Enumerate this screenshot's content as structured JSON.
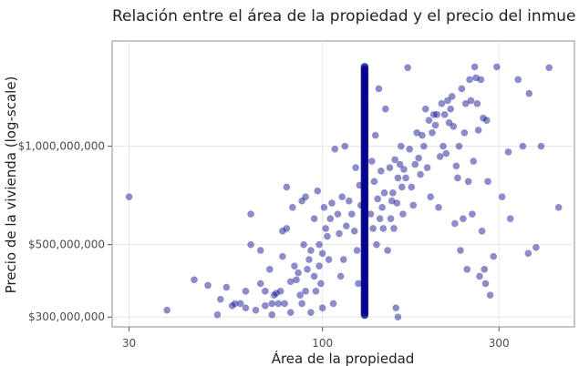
{
  "chart_data": {
    "type": "scatter",
    "title": "Relación entre el área de la propiedad y el precio del inmue",
    "xlabel": "Área de la propiedad",
    "ylabel": "Precio de la vivienda (log-scale)",
    "x_scale": "log",
    "y_scale": "log",
    "xlim": [
      27,
      480
    ],
    "ylim": [
      280000000,
      2100000000
    ],
    "x_ticks": [
      {
        "value": 30,
        "label": "30"
      },
      {
        "value": 100,
        "label": "100"
      },
      {
        "value": 300,
        "label": "300"
      }
    ],
    "y_ticks": [
      {
        "value": 300000000,
        "label": "$300,000,000"
      },
      {
        "value": 500000000,
        "label": "$500,000,000"
      },
      {
        "value": 1000000000,
        "label": "$1,000,000,000"
      }
    ],
    "grid": true,
    "point_color": "#00008b",
    "column_x": 130,
    "column_y_range": [
      300000000,
      1750000000
    ],
    "points": [
      [
        30,
        700000000
      ],
      [
        38,
        315000000
      ],
      [
        45,
        390000000
      ],
      [
        49,
        375000000
      ],
      [
        52,
        305000000
      ],
      [
        53,
        340000000
      ],
      [
        55,
        370000000
      ],
      [
        57,
        325000000
      ],
      [
        58,
        330000000
      ],
      [
        60,
        330000000
      ],
      [
        62,
        320000000
      ],
      [
        62,
        360000000
      ],
      [
        64,
        620000000
      ],
      [
        64,
        500000000
      ],
      [
        66,
        315000000
      ],
      [
        68,
        380000000
      ],
      [
        68,
        480000000
      ],
      [
        70,
        325000000
      ],
      [
        70,
        360000000
      ],
      [
        72,
        420000000
      ],
      [
        73,
        305000000
      ],
      [
        73,
        330000000
      ],
      [
        74,
        350000000
      ],
      [
        75,
        355000000
      ],
      [
        76,
        330000000
      ],
      [
        77,
        360000000
      ],
      [
        78,
        550000000
      ],
      [
        78,
        460000000
      ],
      [
        79,
        330000000
      ],
      [
        80,
        750000000
      ],
      [
        80,
        560000000
      ],
      [
        82,
        310000000
      ],
      [
        82,
        385000000
      ],
      [
        83,
        650000000
      ],
      [
        84,
        430000000
      ],
      [
        85,
        390000000
      ],
      [
        86,
        410000000
      ],
      [
        87,
        350000000
      ],
      [
        88,
        330000000
      ],
      [
        88,
        680000000
      ],
      [
        89,
        500000000
      ],
      [
        90,
        360000000
      ],
      [
        90,
        700000000
      ],
      [
        91,
        420000000
      ],
      [
        92,
        450000000
      ],
      [
        93,
        310000000
      ],
      [
        93,
        480000000
      ],
      [
        95,
        400000000
      ],
      [
        95,
        600000000
      ],
      [
        96,
        360000000
      ],
      [
        97,
        730000000
      ],
      [
        98,
        430000000
      ],
      [
        98,
        500000000
      ],
      [
        99,
        380000000
      ],
      [
        100,
        320000000
      ],
      [
        100,
        470000000
      ],
      [
        101,
        650000000
      ],
      [
        102,
        560000000
      ],
      [
        103,
        530000000
      ],
      [
        104,
        450000000
      ],
      [
        105,
        600000000
      ],
      [
        106,
        670000000
      ],
      [
        107,
        330000000
      ],
      [
        108,
        980000000
      ],
      [
        110,
        620000000
      ],
      [
        111,
        540000000
      ],
      [
        112,
        400000000
      ],
      [
        113,
        700000000
      ],
      [
        114,
        450000000
      ],
      [
        115,
        1000000000
      ],
      [
        116,
        570000000
      ],
      [
        118,
        680000000
      ],
      [
        120,
        620000000
      ],
      [
        122,
        550000000
      ],
      [
        123,
        860000000
      ],
      [
        124,
        480000000
      ],
      [
        125,
        380000000
      ],
      [
        126,
        760000000
      ],
      [
        127,
        660000000
      ],
      [
        135,
        620000000
      ],
      [
        136,
        900000000
      ],
      [
        137,
        560000000
      ],
      [
        138,
        780000000
      ],
      [
        139,
        1080000000
      ],
      [
        140,
        500000000
      ],
      [
        141,
        690000000
      ],
      [
        142,
        1500000000
      ],
      [
        143,
        600000000
      ],
      [
        144,
        840000000
      ],
      [
        145,
        650000000
      ],
      [
        146,
        560000000
      ],
      [
        147,
        720000000
      ],
      [
        148,
        1300000000
      ],
      [
        150,
        480000000
      ],
      [
        152,
        860000000
      ],
      [
        153,
        600000000
      ],
      [
        154,
        680000000
      ],
      [
        155,
        720000000
      ],
      [
        156,
        560000000
      ],
      [
        157,
        910000000
      ],
      [
        158,
        320000000
      ],
      [
        159,
        670000000
      ],
      [
        160,
        800000000
      ],
      [
        160,
        300000000
      ],
      [
        162,
        880000000
      ],
      [
        163,
        1000000000
      ],
      [
        164,
        750000000
      ],
      [
        165,
        620000000
      ],
      [
        166,
        850000000
      ],
      [
        168,
        800000000
      ],
      [
        170,
        1740000000
      ],
      [
        172,
        980000000
      ],
      [
        174,
        750000000
      ],
      [
        176,
        660000000
      ],
      [
        178,
        880000000
      ],
      [
        180,
        1100000000
      ],
      [
        182,
        920000000
      ],
      [
        184,
        820000000
      ],
      [
        186,
        1080000000
      ],
      [
        188,
        1000000000
      ],
      [
        190,
        1300000000
      ],
      [
        192,
        860000000
      ],
      [
        194,
        1200000000
      ],
      [
        196,
        700000000
      ],
      [
        198,
        1100000000
      ],
      [
        200,
        1250000000
      ],
      [
        202,
        1160000000
      ],
      [
        204,
        1250000000
      ],
      [
        206,
        650000000
      ],
      [
        208,
        930000000
      ],
      [
        210,
        1350000000
      ],
      [
        212,
        1000000000
      ],
      [
        214,
        1250000000
      ],
      [
        216,
        950000000
      ],
      [
        218,
        1380000000
      ],
      [
        220,
        1180000000
      ],
      [
        222,
        1300000000
      ],
      [
        224,
        1420000000
      ],
      [
        226,
        1150000000
      ],
      [
        228,
        580000000
      ],
      [
        230,
        870000000
      ],
      [
        232,
        800000000
      ],
      [
        234,
        1000000000
      ],
      [
        236,
        480000000
      ],
      [
        238,
        1500000000
      ],
      [
        240,
        600000000
      ],
      [
        242,
        1100000000
      ],
      [
        244,
        1350000000
      ],
      [
        246,
        420000000
      ],
      [
        248,
        780000000
      ],
      [
        250,
        1600000000
      ],
      [
        252,
        1380000000
      ],
      [
        254,
        620000000
      ],
      [
        256,
        900000000
      ],
      [
        258,
        1750000000
      ],
      [
        260,
        1620000000
      ],
      [
        262,
        1350000000
      ],
      [
        264,
        1120000000
      ],
      [
        266,
        400000000
      ],
      [
        268,
        1600000000
      ],
      [
        270,
        550000000
      ],
      [
        272,
        1220000000
      ],
      [
        274,
        420000000
      ],
      [
        276,
        380000000
      ],
      [
        278,
        1200000000
      ],
      [
        280,
        780000000
      ],
      [
        284,
        350000000
      ],
      [
        290,
        460000000
      ],
      [
        296,
        1750000000
      ],
      [
        306,
        700000000
      ],
      [
        318,
        960000000
      ],
      [
        322,
        600000000
      ],
      [
        338,
        1600000000
      ],
      [
        348,
        1000000000
      ],
      [
        360,
        470000000
      ],
      [
        362,
        1450000000
      ],
      [
        378,
        490000000
      ],
      [
        390,
        1000000000
      ],
      [
        410,
        1740000000
      ],
      [
        435,
        650000000
      ]
    ]
  }
}
